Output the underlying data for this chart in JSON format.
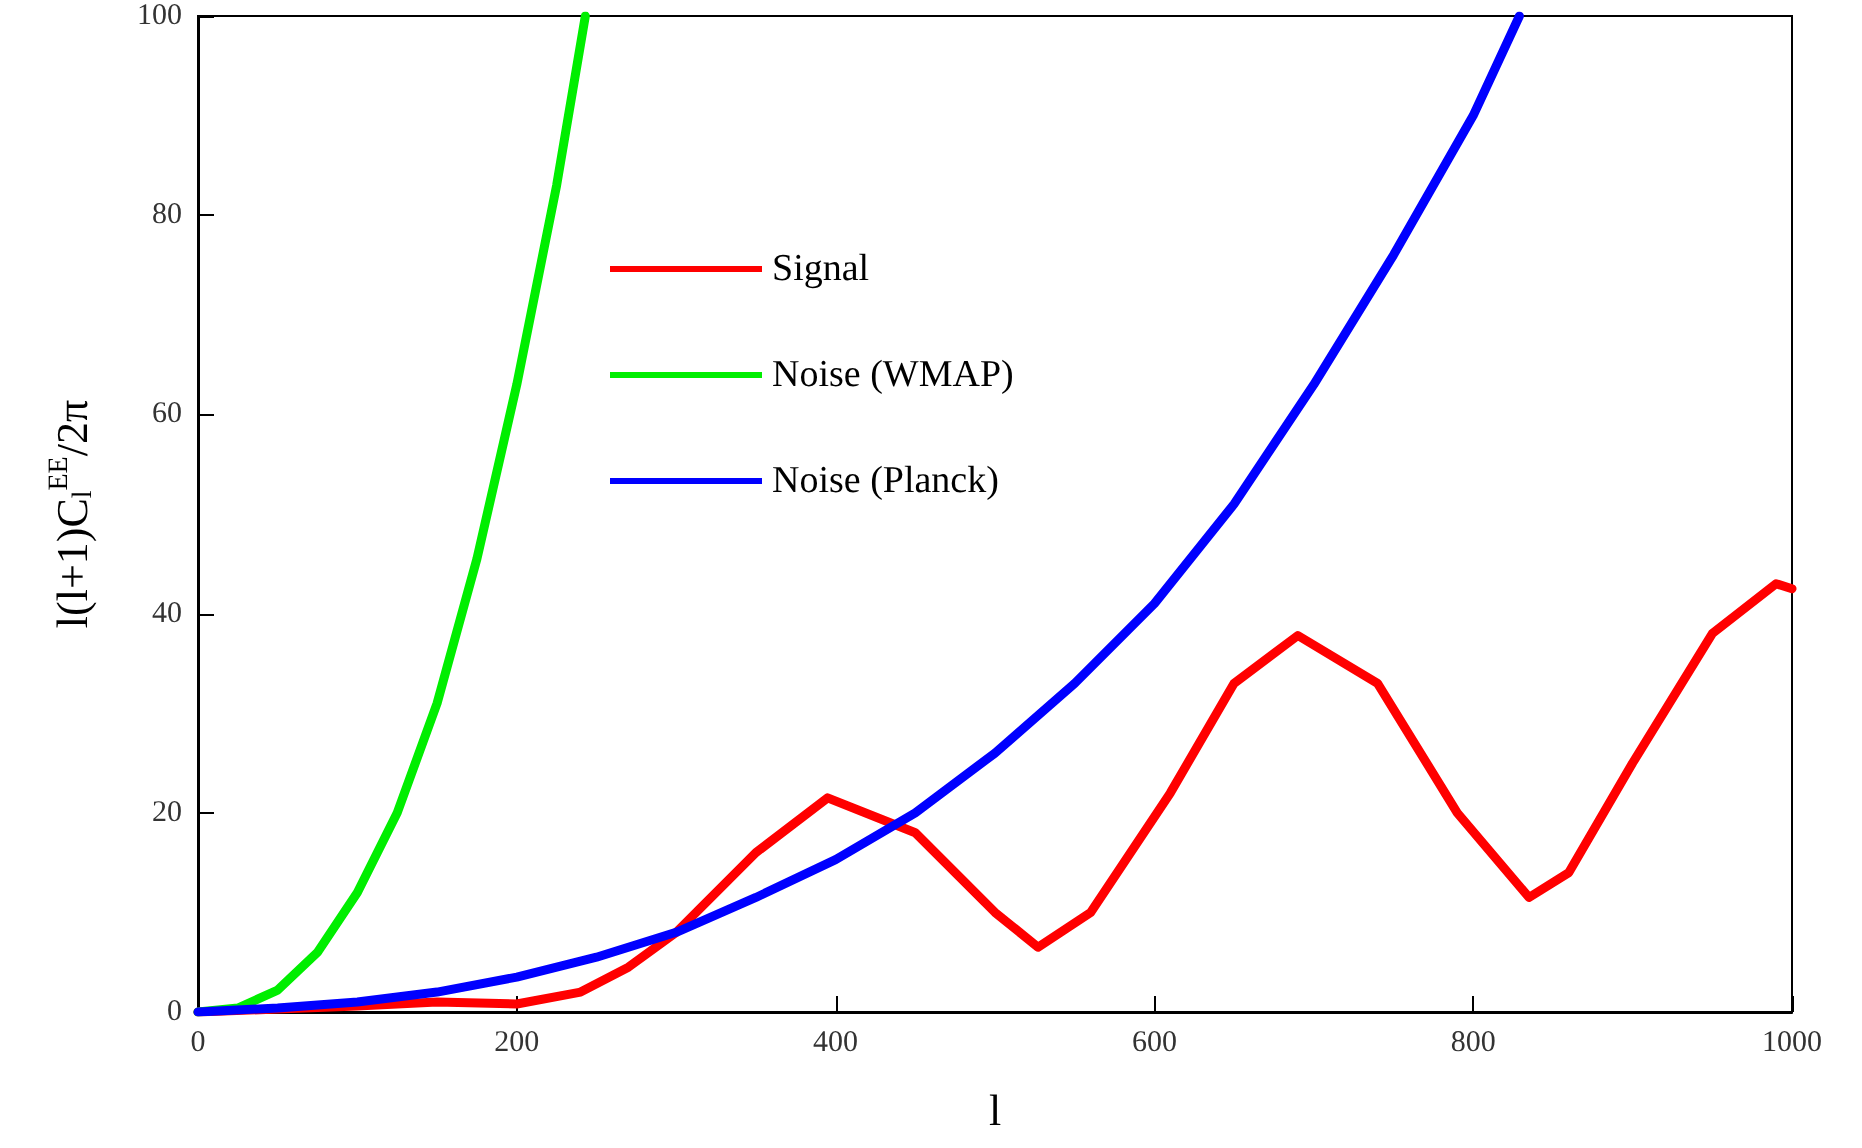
{
  "chart_data": {
    "type": "line",
    "xlabel": "l",
    "ylabel": "l(l+1)C$_{l}$$^{EE}$/2π",
    "xlim": [
      0,
      1000
    ],
    "ylim": [
      0,
      100
    ],
    "xticks": [
      0,
      200,
      400,
      600,
      800,
      1000
    ],
    "yticks": [
      0,
      20,
      40,
      60,
      80,
      100
    ],
    "grid": false,
    "legend": "top",
    "marker": "none",
    "line_style": "solid",
    "series": [
      {
        "name": "Signal",
        "color": "#ff0000",
        "x": [
          0,
          50,
          100,
          150,
          200,
          240,
          270,
          300,
          350,
          395,
          450,
          500,
          527,
          560,
          610,
          650,
          690,
          740,
          790,
          835,
          860,
          900,
          950,
          990,
          1000
        ],
        "values": [
          0,
          0.3,
          0.6,
          1,
          0.8,
          2,
          4.5,
          8,
          16,
          21.5,
          18,
          10,
          6.5,
          10,
          22,
          33,
          37.8,
          33,
          20,
          11.5,
          14,
          25,
          38,
          43,
          42.5
        ]
      },
      {
        "name": "Noise (WMAP)",
        "color": "#00ee00",
        "x": [
          0,
          25,
          50,
          75,
          100,
          125,
          150,
          175,
          200,
          225,
          243
        ],
        "values": [
          0,
          0.4,
          2.2,
          6,
          12,
          20,
          31,
          45.5,
          63,
          83,
          100
        ]
      },
      {
        "name": "Noise (Planck)",
        "color": "#0000ff",
        "x": [
          0,
          50,
          100,
          150,
          200,
          250,
          300,
          350,
          400,
          450,
          500,
          550,
          600,
          650,
          700,
          750,
          800,
          829
        ],
        "values": [
          0,
          0.4,
          1,
          2,
          3.5,
          5.5,
          8,
          11.5,
          15.3,
          20,
          26,
          33,
          41,
          51,
          63,
          76,
          90,
          100
        ]
      }
    ]
  }
}
